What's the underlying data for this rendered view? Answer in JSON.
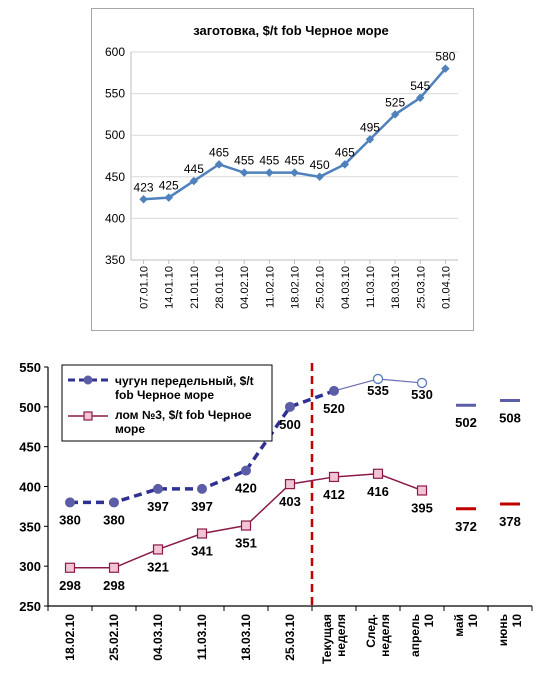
{
  "chart_data": [
    {
      "type": "line",
      "title": "заготовка, $/t fob Черное море",
      "xlabel": "",
      "ylabel": "",
      "ylim": [
        350,
        600
      ],
      "yticks": [
        350,
        400,
        450,
        500,
        550,
        600
      ],
      "grid": true,
      "categories": [
        "07.01.10",
        "14.01.10",
        "21.01.10",
        "28.01.10",
        "04.02.10",
        "11.02.10",
        "18.02.10",
        "25.02.10",
        "04.03.10",
        "11.03.10",
        "18.03.10",
        "25.03.10",
        "01.04.10"
      ],
      "series": [
        {
          "values": [
            423,
            425,
            445,
            465,
            455,
            455,
            455,
            450,
            465,
            495,
            525,
            545,
            580
          ],
          "color": "#4f81bd"
        }
      ]
    },
    {
      "type": "line",
      "title": "",
      "xlabel": "",
      "ylabel": "",
      "ylim": [
        250,
        550
      ],
      "yticks": [
        250,
        300,
        350,
        400,
        450,
        500,
        550
      ],
      "grid": false,
      "legend_position": "top-left",
      "categories": [
        "18.02.10",
        "25.02.10",
        "04.03.10",
        "11.03.10",
        "18.03.10",
        "25.03.10",
        "Текущая неделя",
        "След. неделя",
        "апрель 10",
        "май 10",
        "июнь 10"
      ],
      "current_week_marker": "Текущая неделя",
      "series": [
        {
          "name": "чугун передельный, $/t fob Черное море",
          "color": "#2e3192",
          "values": [
            380,
            380,
            397,
            397,
            420,
            500,
            520,
            535,
            530,
            502,
            508
          ],
          "labels": [
            "380",
            "380",
            "397",
            "397",
            "420",
            "500",
            "520",
            "535",
            "530",
            "502",
            "508"
          ]
        },
        {
          "name": "лом №3, $/t fob Черное море",
          "color": "#8b1a4a",
          "values": [
            298,
            298,
            321,
            341,
            351,
            403,
            412,
            416,
            395,
            372,
            378
          ],
          "labels": [
            "298",
            "298",
            "321",
            "341",
            "351",
            "403",
            "412",
            "416",
            "395",
            "372",
            "378"
          ]
        }
      ]
    }
  ]
}
